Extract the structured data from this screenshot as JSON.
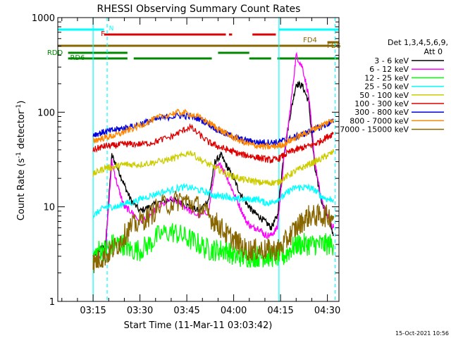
{
  "chart_data": {
    "type": "line",
    "title": "RHESSI Observing Summary Count Rates",
    "xlabel": "Start Time (11-Mar-11 03:03:42)",
    "ylabel_main": "Count Rate (s",
    "ylabel_sup": "-1",
    "ylabel_mid": " detector",
    "ylabel_sup2": "-1",
    "ylabel_end": ")",
    "timestamp": "15-Oct-2021 10:56",
    "y_scale": "log",
    "ylim": [
      1,
      1000
    ],
    "xlim_minutes": [
      3.7,
      93.7
    ],
    "x_ticks": [
      {
        "label": "03:15",
        "min": 15
      },
      {
        "label": "03:30",
        "min": 30
      },
      {
        "label": "03:45",
        "min": 45
      },
      {
        "label": "04:00",
        "min": 60
      },
      {
        "label": "04:15",
        "min": 75
      },
      {
        "label": "04:30",
        "min": 90
      }
    ],
    "y_ticks": [
      {
        "label": "1",
        "value": 1
      },
      {
        "label": "10",
        "value": 10
      },
      {
        "label": "100",
        "value": 100
      },
      {
        "label": "1000",
        "value": 1000
      }
    ],
    "legend": {
      "header1": "Det 1,3,4,5,6,9,",
      "header2": "Att 0",
      "placement": "right",
      "entries": [
        {
          "label": "3 - 6 keV",
          "color": "#000000"
        },
        {
          "label": "6 - 12 keV",
          "color": "#ff00ff"
        },
        {
          "label": "12 - 25 keV",
          "color": "#00ff00"
        },
        {
          "label": "25 - 50 keV",
          "color": "#00ffff"
        },
        {
          "label": "50 - 100 keV",
          "color": "#cccc00"
        },
        {
          "label": "100 - 300 keV",
          "color": "#dd0000"
        },
        {
          "label": "300 - 800 keV",
          "color": "#0000dd"
        },
        {
          "label": "800 - 7000 keV",
          "color": "#ff8800"
        },
        {
          "label": "7000 - 15000 keV",
          "color": "#886600"
        }
      ]
    },
    "flags": [
      {
        "label": "N",
        "color": "#00ffff",
        "segments": [
          [
            3.7,
            18.5
          ],
          [
            74.5,
            93.7
          ]
        ]
      },
      {
        "label": "F",
        "color": "#dd0000",
        "segments": [
          [
            18.5,
            57.5
          ],
          [
            58.5,
            59.5
          ],
          [
            66,
            73.5
          ]
        ]
      },
      {
        "label": "FD4",
        "color": "#886600",
        "segments": [
          [
            3.7,
            93.7
          ]
        ]
      },
      {
        "label": "FD5",
        "color": "#886600",
        "segments": [
          [
            90,
            93.7
          ]
        ]
      },
      {
        "label": "RDD",
        "color": "#008800",
        "segments": [
          [
            7,
            26
          ],
          [
            55,
            65
          ]
        ]
      },
      {
        "label": "RD6",
        "color": "#008800",
        "segments": [
          [
            7,
            26
          ],
          [
            28,
            53
          ],
          [
            65,
            72
          ],
          [
            74,
            93.7
          ]
        ]
      }
    ],
    "vlines": [
      {
        "min": 15,
        "color": "#00ffff",
        "style": "solid"
      },
      {
        "min": 19.5,
        "color": "#00ffff",
        "style": "dashed"
      },
      {
        "min": 74.5,
        "color": "#00ffff",
        "style": "solid"
      },
      {
        "min": 92.5,
        "color": "#00ffff",
        "style": "dashed"
      }
    ],
    "series": [
      {
        "name": "3 - 6 keV",
        "color": "#000000",
        "x": [
          15,
          17,
          19,
          21,
          23,
          25,
          27,
          30,
          33,
          36,
          40,
          43,
          46,
          49,
          52,
          54,
          56,
          58,
          60,
          62,
          64,
          66,
          68,
          70,
          72,
          74,
          76,
          78,
          80,
          82,
          84,
          86,
          88,
          90,
          92
        ],
        "y": [
          3,
          3.5,
          4,
          35,
          25,
          17,
          12,
          9,
          10,
          11,
          12,
          11,
          10,
          9,
          12,
          30,
          35,
          26,
          20,
          14,
          11,
          9,
          8,
          7,
          6,
          8,
          35,
          90,
          200,
          190,
          130,
          25,
          12,
          8,
          5
        ]
      },
      {
        "name": "6 - 12 keV",
        "color": "#ff00ff",
        "x": [
          15,
          17,
          19,
          21,
          23,
          25,
          27,
          30,
          33,
          36,
          40,
          43,
          46,
          49,
          52,
          54,
          56,
          58,
          60,
          62,
          64,
          66,
          68,
          70,
          72,
          74,
          76,
          78,
          80,
          82,
          84,
          86,
          88,
          90,
          92
        ],
        "y": [
          2.5,
          3,
          3.5,
          30,
          16,
          10,
          9,
          7,
          8,
          10,
          12,
          11,
          9,
          8,
          9,
          25,
          28,
          20,
          14,
          10,
          7,
          6,
          6,
          5,
          5,
          6,
          30,
          100,
          400,
          300,
          150,
          30,
          12,
          8,
          6
        ]
      },
      {
        "name": "12 - 25 keV",
        "color": "#00ff00",
        "x": [
          15,
          17,
          19,
          21,
          23,
          25,
          27,
          30,
          33,
          36,
          40,
          43,
          46,
          49,
          52,
          54,
          56,
          58,
          60,
          62,
          64,
          66,
          68,
          70,
          72,
          74,
          76,
          78,
          80,
          82,
          84,
          86,
          88,
          90,
          92
        ],
        "y": [
          3,
          3.5,
          3.5,
          4,
          4,
          4,
          3.5,
          3.5,
          4,
          5,
          5.5,
          5,
          4.5,
          4,
          3.5,
          3.5,
          3.5,
          3.5,
          3,
          3,
          3,
          3,
          3,
          3,
          3,
          3,
          3,
          3.5,
          4,
          4,
          4,
          4,
          4,
          4,
          4
        ]
      },
      {
        "name": "25 - 50 keV",
        "color": "#00ffff",
        "x": [
          15,
          17,
          19,
          21,
          23,
          25,
          27,
          30,
          33,
          36,
          40,
          43,
          46,
          49,
          52,
          54,
          56,
          58,
          60,
          62,
          64,
          66,
          68,
          70,
          72,
          74,
          76,
          78,
          80,
          82,
          84,
          86,
          88,
          90,
          92
        ],
        "y": [
          8,
          9,
          10,
          10,
          10,
          11,
          11,
          12,
          13,
          14,
          15,
          16,
          16,
          15,
          14,
          13,
          13,
          13,
          12,
          12,
          12,
          12,
          12,
          11,
          11,
          12,
          13,
          15,
          16,
          16,
          16,
          15,
          13,
          12,
          12
        ]
      },
      {
        "name": "50 - 100 keV",
        "color": "#cccc00",
        "x": [
          15,
          17,
          19,
          21,
          23,
          25,
          27,
          30,
          33,
          36,
          40,
          43,
          46,
          49,
          52,
          54,
          56,
          58,
          60,
          62,
          64,
          66,
          68,
          70,
          72,
          74,
          76,
          78,
          80,
          82,
          84,
          86,
          88,
          90,
          92
        ],
        "y": [
          22,
          24,
          26,
          26,
          27,
          28,
          28,
          28,
          29,
          30,
          32,
          34,
          38,
          32,
          28,
          26,
          24,
          22,
          21,
          20,
          19,
          19,
          18,
          18,
          18,
          18,
          20,
          22,
          24,
          26,
          28,
          30,
          32,
          35,
          38
        ]
      },
      {
        "name": "100 - 300 keV",
        "color": "#dd0000",
        "x": [
          15,
          17,
          19,
          21,
          23,
          25,
          27,
          30,
          33,
          36,
          40,
          43,
          46,
          49,
          52,
          54,
          56,
          58,
          60,
          62,
          64,
          66,
          68,
          70,
          72,
          74,
          76,
          78,
          80,
          82,
          84,
          86,
          88,
          90,
          92
        ],
        "y": [
          40,
          42,
          44,
          44,
          45,
          46,
          46,
          46,
          47,
          50,
          55,
          62,
          70,
          58,
          48,
          45,
          42,
          40,
          38,
          36,
          35,
          34,
          33,
          32,
          31,
          32,
          35,
          38,
          40,
          42,
          44,
          46,
          50,
          55,
          60
        ]
      },
      {
        "name": "300 - 800 keV",
        "color": "#0000dd",
        "x": [
          15,
          17,
          19,
          21,
          23,
          25,
          27,
          30,
          33,
          36,
          40,
          43,
          46,
          49,
          52,
          54,
          56,
          58,
          60,
          62,
          64,
          66,
          68,
          70,
          72,
          74,
          76,
          78,
          80,
          82,
          84,
          86,
          88,
          90,
          92
        ],
        "y": [
          58,
          60,
          62,
          64,
          66,
          68,
          70,
          75,
          80,
          85,
          90,
          92,
          90,
          85,
          75,
          68,
          62,
          58,
          55,
          52,
          50,
          49,
          48,
          48,
          48,
          48,
          50,
          52,
          55,
          58,
          62,
          66,
          70,
          75,
          80
        ]
      },
      {
        "name": "800 - 7000 keV",
        "color": "#ff8800",
        "x": [
          15,
          17,
          19,
          21,
          23,
          25,
          27,
          30,
          33,
          36,
          40,
          43,
          46,
          49,
          52,
          54,
          56,
          58,
          60,
          62,
          64,
          66,
          68,
          70,
          72,
          74,
          76,
          78,
          80,
          82,
          84,
          86,
          88,
          90,
          92
        ],
        "y": [
          50,
          52,
          54,
          56,
          58,
          62,
          66,
          72,
          80,
          88,
          96,
          100,
          96,
          88,
          78,
          70,
          64,
          58,
          54,
          50,
          47,
          45,
          44,
          43,
          43,
          44,
          46,
          50,
          54,
          58,
          62,
          68,
          72,
          78,
          85
        ]
      },
      {
        "name": "7000 - 15000 keV",
        "color": "#886600",
        "x": [
          15,
          17,
          19,
          21,
          23,
          25,
          27,
          30,
          33,
          36,
          40,
          43,
          46,
          49,
          52,
          54,
          56,
          58,
          60,
          62,
          64,
          66,
          68,
          70,
          72,
          74,
          76,
          78,
          80,
          82,
          84,
          86,
          88,
          90,
          92
        ],
        "y": [
          2.5,
          2.8,
          3,
          3.5,
          4,
          5,
          6,
          7,
          8,
          10,
          11,
          12,
          11,
          10,
          8,
          7,
          6,
          5,
          4.5,
          4,
          3.5,
          3.5,
          3.5,
          3.5,
          3.5,
          3.5,
          4,
          5,
          6,
          7,
          8,
          8,
          8,
          8,
          8
        ]
      }
    ]
  }
}
